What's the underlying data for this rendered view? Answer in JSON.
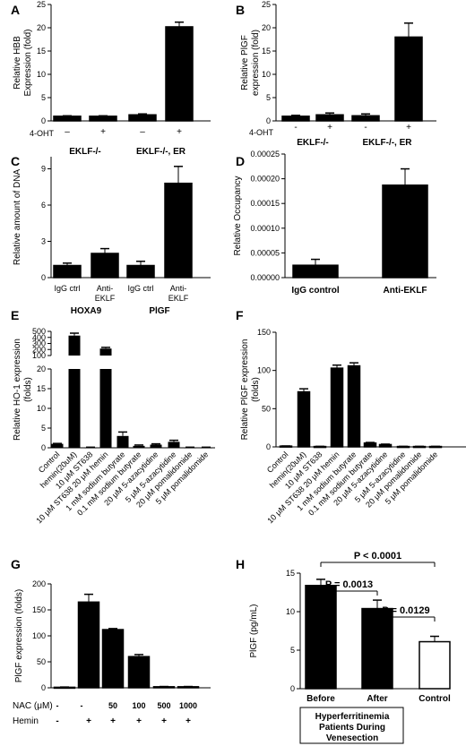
{
  "chart_data": [
    {
      "panel": "A",
      "type": "bar",
      "ylabel": "Relative HBB Expression (fold)",
      "ylim": [
        0,
        25
      ],
      "yticks": [
        0,
        5,
        10,
        15,
        20,
        25
      ],
      "categories": [
        "–",
        "+",
        "–",
        "+"
      ],
      "row_label": "4-OHT",
      "groups": [
        {
          "label": "EKLF-/-",
          "span": [
            0,
            1
          ]
        },
        {
          "label": "EKLF-/-, ER",
          "span": [
            2,
            3
          ]
        }
      ],
      "values": [
        1.0,
        1.0,
        1.3,
        20.2
      ],
      "errors": [
        0.1,
        0.1,
        0.2,
        1.0
      ]
    },
    {
      "panel": "B",
      "type": "bar",
      "ylabel": "Relative PlGF expression (fold)",
      "ylim": [
        0,
        25
      ],
      "yticks": [
        0,
        5,
        10,
        15,
        20,
        25
      ],
      "categories": [
        "-",
        "+",
        "-",
        "+"
      ],
      "row_label": "4-OHT",
      "groups": [
        {
          "label": "EKLF-/-",
          "span": [
            0,
            1
          ]
        },
        {
          "label": "EKLF-/-, ER",
          "span": [
            2,
            3
          ]
        }
      ],
      "values": [
        1.0,
        1.3,
        1.1,
        18.0
      ],
      "errors": [
        0.2,
        0.4,
        0.4,
        3.0
      ]
    },
    {
      "panel": "C",
      "type": "bar",
      "ylabel": "Relative amount of DNA",
      "ylim": [
        0,
        10
      ],
      "yticks": [
        0,
        3,
        6,
        9
      ],
      "categories": [
        "IgG ctrl",
        "Anti-\nEKLF",
        "IgG ctrl",
        "Anti-\nEKLF"
      ],
      "groups": [
        {
          "label": "HOXA9",
          "span": [
            0,
            1
          ]
        },
        {
          "label": "PlGF",
          "span": [
            2,
            3
          ]
        }
      ],
      "values": [
        1.0,
        2.0,
        1.0,
        7.8
      ],
      "errors": [
        0.2,
        0.4,
        0.35,
        1.4
      ]
    },
    {
      "panel": "D",
      "type": "bar",
      "ylabel": "Relative Occupancy",
      "ylim": [
        0,
        0.00025
      ],
      "yticks": [
        0,
        5e-05,
        0.0001,
        0.00015,
        0.0002,
        0.00025
      ],
      "ytick_labels": [
        "0.00000",
        "0.00005",
        "0.00010",
        "0.00015",
        "0.00020",
        "0.00025"
      ],
      "categories": [
        "IgG control",
        "Anti-EKLF"
      ],
      "values": [
        2.5e-05,
        0.000187
      ],
      "errors": [
        1.2e-05,
        3.3e-05
      ]
    },
    {
      "panel": "E",
      "type": "bar",
      "ylabel": "Relative HO-1 expression (folds)",
      "axis_break": {
        "low": [
          0,
          20
        ],
        "high": [
          100,
          500
        ]
      },
      "yticks_low": [
        0,
        5,
        10,
        15,
        20
      ],
      "yticks_high": [
        100,
        200,
        300,
        400,
        500
      ],
      "categories": [
        "Control",
        "hemin(20uM)",
        "10 μM ST638",
        "10 μM ST638 20 μM hemin",
        "1 mM sodium butyrate",
        "0.1 mM sodium butyrate",
        "20 μM 5-azacytidine",
        "5 μM 5-azacytidine",
        "20 μM pomalidomide",
        "5 μM pomalidomide"
      ],
      "values": [
        1.0,
        430,
        0.1,
        215,
        3.0,
        0.5,
        0.8,
        1.5,
        0.1,
        0.1
      ],
      "errors": [
        0.1,
        40,
        0.05,
        20,
        1.0,
        0.2,
        0.2,
        0.4,
        0.05,
        0.05
      ]
    },
    {
      "panel": "F",
      "type": "bar",
      "ylabel": "Relative PlGF expression (folds)",
      "ylim": [
        0,
        150
      ],
      "yticks": [
        0,
        50,
        100,
        150
      ],
      "categories": [
        "Control",
        "hemin(20uM)",
        "10 μM ST638",
        "10 μM ST638 20 μM hemin",
        "1 mM sodium butyrate",
        "0.1 mM sodium butyrate",
        "20 μM 5-azacytidine",
        "5 μM 5-azacytidine",
        "20 μM pomalidomide",
        "5 μM pomalidomide"
      ],
      "values": [
        1.0,
        72,
        0.5,
        103,
        106,
        5,
        3,
        0.5,
        0.5,
        0.5
      ],
      "errors": [
        0.2,
        4,
        0.2,
        4,
        4,
        0.8,
        0.6,
        0.2,
        0.2,
        0.2
      ]
    },
    {
      "panel": "G",
      "type": "bar",
      "ylabel": "PlGF expression (folds)",
      "ylim": [
        0,
        200
      ],
      "yticks": [
        0,
        50,
        100,
        150,
        200
      ],
      "row_labels": [
        "NAC (μM)",
        "Hemin"
      ],
      "categories": [
        "-",
        "-",
        "50",
        "100",
        "500",
        "1000"
      ],
      "hemin": [
        "-",
        "+",
        "+",
        "+",
        "+",
        "+"
      ],
      "values": [
        1,
        165,
        112,
        60,
        2,
        2
      ],
      "errors": [
        0.5,
        15,
        2,
        4,
        0.5,
        0.5
      ]
    },
    {
      "panel": "H",
      "type": "bar",
      "ylabel": "PlGF (pg/mL)",
      "ylim": [
        0,
        15
      ],
      "yticks": [
        0,
        5,
        10,
        15
      ],
      "categories": [
        "Before",
        "After",
        "Control"
      ],
      "values": [
        13.4,
        10.4,
        6.1
      ],
      "errors": [
        0.8,
        1.1,
        0.7
      ],
      "fills": [
        "#000000",
        "#000000",
        "#ffffff"
      ],
      "brackets": [
        {
          "from": 0,
          "to": 2,
          "label": "P < 0.0001"
        },
        {
          "from": 0,
          "to": 1,
          "label": "P = 0.0013"
        },
        {
          "from": 1,
          "to": 2,
          "label": "P = 0.0129"
        }
      ],
      "box_text": [
        "Hyperferritinemia",
        "Patients During",
        "Venesection"
      ]
    }
  ]
}
